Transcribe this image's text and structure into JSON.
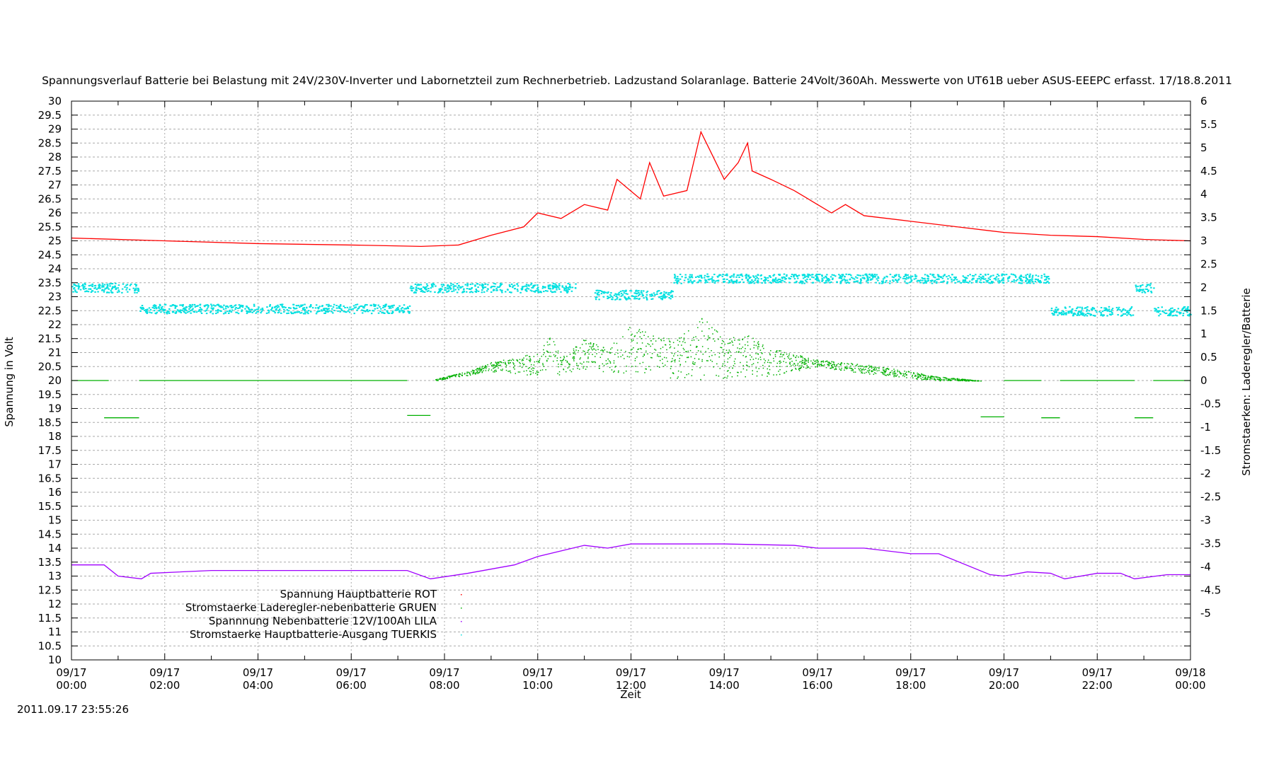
{
  "chart_data": {
    "type": "scatter",
    "title": "Spannungsverlauf Batterie bei Belastung mit 24V/230V-Inverter und Labornetzteil zum Rechnerbetrieb. Ladzustand Solaranlage. Batterie 24Volt/360Ah. Messwerte von UT61B ueber ASUS-EEEPC erfasst. 17/18.8.2011",
    "xlabel": "Zeit",
    "ylabel": "Spannung in Volt",
    "y2label": "Stromstaerken: Laderegler/Batterie",
    "timestamp": "2011.09.17 23:55:26",
    "xlim_hours": [
      0,
      24
    ],
    "ylim": [
      10,
      30
    ],
    "y2lim": [
      -6,
      6
    ],
    "grid": true,
    "legend_position": "bottom-left",
    "x_ticks": [
      {
        "h": 0,
        "date": "09/17",
        "time": "00:00"
      },
      {
        "h": 2,
        "date": "09/17",
        "time": "02:00"
      },
      {
        "h": 4,
        "date": "09/17",
        "time": "04:00"
      },
      {
        "h": 6,
        "date": "09/17",
        "time": "06:00"
      },
      {
        "h": 8,
        "date": "09/17",
        "time": "08:00"
      },
      {
        "h": 10,
        "date": "09/17",
        "time": "10:00"
      },
      {
        "h": 12,
        "date": "09/17",
        "time": "12:00"
      },
      {
        "h": 14,
        "date": "09/17",
        "time": "14:00"
      },
      {
        "h": 16,
        "date": "09/17",
        "time": "16:00"
      },
      {
        "h": 18,
        "date": "09/17",
        "time": "18:00"
      },
      {
        "h": 20,
        "date": "09/17",
        "time": "20:00"
      },
      {
        "h": 22,
        "date": "09/17",
        "time": "22:00"
      },
      {
        "h": 24,
        "date": "09/18",
        "time": "00:00"
      }
    ],
    "y_ticks": [
      "10",
      "10.5",
      "11",
      "11.5",
      "12",
      "12.5",
      "13",
      "13.5",
      "14",
      "14.5",
      "15",
      "15.5",
      "16",
      "16.5",
      "17",
      "17.5",
      "18",
      "18.5",
      "19",
      "19.5",
      "20",
      "20.5",
      "21",
      "21.5",
      "22",
      "22.5",
      "23",
      "23.5",
      "24",
      "24.5",
      "25",
      "25.5",
      "26",
      "26.5",
      "27",
      "27.5",
      "28",
      "28.5",
      "29",
      "29.5",
      "30"
    ],
    "y2_ticks": [
      "-5",
      "-4.5",
      "-4",
      "-3.5",
      "-3",
      "-2.5",
      "-2",
      "-1.5",
      "-1",
      "-0.5",
      "0",
      "0.5",
      "1",
      "1.5",
      "2",
      "2.5",
      "3",
      "3.5",
      "4",
      "4.5",
      "5",
      "5.5",
      "6"
    ],
    "series": [
      {
        "name": "Spannung Hauptbatterie ROT",
        "color": "#ff0000",
        "axis": "y",
        "points": [
          [
            0,
            25.1
          ],
          [
            2,
            25.0
          ],
          [
            4,
            24.9
          ],
          [
            6,
            24.85
          ],
          [
            7.5,
            24.8
          ],
          [
            8.3,
            24.85
          ],
          [
            9,
            25.2
          ],
          [
            9.7,
            25.5
          ],
          [
            10,
            26.0
          ],
          [
            10.5,
            25.8
          ],
          [
            11,
            26.3
          ],
          [
            11.5,
            26.1
          ],
          [
            11.7,
            27.2
          ],
          [
            12.2,
            26.5
          ],
          [
            12.4,
            27.8
          ],
          [
            12.7,
            26.6
          ],
          [
            13.2,
            26.8
          ],
          [
            13.5,
            28.9
          ],
          [
            14,
            27.2
          ],
          [
            14.3,
            27.8
          ],
          [
            14.5,
            28.5
          ],
          [
            14.6,
            27.5
          ],
          [
            15,
            27.2
          ],
          [
            15.5,
            26.8
          ],
          [
            16,
            26.3
          ],
          [
            16.3,
            26.0
          ],
          [
            16.6,
            26.3
          ],
          [
            17,
            25.9
          ],
          [
            18,
            25.7
          ],
          [
            19,
            25.5
          ],
          [
            20,
            25.3
          ],
          [
            21,
            25.2
          ],
          [
            22,
            25.15
          ],
          [
            23,
            25.05
          ],
          [
            24,
            25.0
          ]
        ]
      },
      {
        "name": "Stromstaerke Laderegler-nebenbatterie GRUEN",
        "color": "#00b000",
        "axis": "y2",
        "line_segments": [
          [
            0,
            0.8,
            0
          ],
          [
            1.45,
            7.2,
            0
          ],
          [
            20,
            20.8,
            0
          ],
          [
            21.2,
            22.8,
            0
          ],
          [
            23.2,
            24,
            0
          ],
          [
            0.7,
            1.45,
            -0.8
          ],
          [
            7.2,
            7.7,
            -0.75
          ],
          [
            19.5,
            20.0,
            -0.78
          ],
          [
            20.8,
            21.2,
            -0.8
          ],
          [
            22.8,
            23.2,
            -0.8
          ]
        ],
        "scatter_upper": [
          [
            7.8,
            0.05
          ],
          [
            8.5,
            0.2
          ],
          [
            9,
            0.4
          ],
          [
            10,
            0.6
          ],
          [
            10.3,
            1.0
          ],
          [
            10.5,
            0.5
          ],
          [
            11,
            0.9
          ],
          [
            11.5,
            0.7
          ],
          [
            12,
            1.2
          ],
          [
            12.5,
            1.0
          ],
          [
            13,
            0.9
          ],
          [
            13.5,
            1.4
          ],
          [
            14,
            0.9
          ],
          [
            14.5,
            1.0
          ],
          [
            15,
            0.7
          ],
          [
            16,
            0.45
          ],
          [
            17,
            0.35
          ],
          [
            18,
            0.2
          ],
          [
            18.5,
            0.1
          ],
          [
            19.5,
            0
          ]
        ],
        "scatter_lower": [
          [
            7.8,
            0
          ],
          [
            9,
            0.2
          ],
          [
            10,
            0.1
          ],
          [
            11.5,
            0.2
          ],
          [
            13,
            0
          ],
          [
            15,
            0.1
          ],
          [
            16,
            0.3
          ],
          [
            17,
            0.15
          ],
          [
            18.5,
            0
          ],
          [
            19.5,
            0
          ]
        ]
      },
      {
        "name": "Spannnung Nebenbatterie 12V/100Ah LILA",
        "color": "#a000ff",
        "axis": "y",
        "points": [
          [
            0,
            13.4
          ],
          [
            0.7,
            13.4
          ],
          [
            1,
            13.0
          ],
          [
            1.5,
            12.9
          ],
          [
            1.7,
            13.1
          ],
          [
            3,
            13.2
          ],
          [
            7.2,
            13.2
          ],
          [
            7.7,
            12.9
          ],
          [
            8.5,
            13.1
          ],
          [
            9.5,
            13.4
          ],
          [
            10,
            13.7
          ],
          [
            11,
            14.1
          ],
          [
            11.5,
            14.0
          ],
          [
            12,
            14.15
          ],
          [
            14,
            14.15
          ],
          [
            15.5,
            14.1
          ],
          [
            16,
            14.0
          ],
          [
            17,
            14.0
          ],
          [
            18,
            13.8
          ],
          [
            18.6,
            13.8
          ],
          [
            19.7,
            13.05
          ],
          [
            20,
            13.0
          ],
          [
            20.5,
            13.15
          ],
          [
            21,
            13.1
          ],
          [
            21.3,
            12.9
          ],
          [
            22,
            13.1
          ],
          [
            22.5,
            13.1
          ],
          [
            22.8,
            12.9
          ],
          [
            23.5,
            13.05
          ],
          [
            24,
            13.05
          ]
        ]
      },
      {
        "name": "Stromstaerke Hauptbatterie-Ausgang TUERKIS",
        "color": "#00e0e0",
        "axis": "y2",
        "segments": [
          [
            0,
            1.45,
            2.0
          ],
          [
            1.45,
            7.25,
            1.55
          ],
          [
            7.25,
            10.8,
            2.0
          ],
          [
            11.2,
            12.9,
            1.85
          ],
          [
            12.9,
            15,
            2.2
          ],
          [
            15,
            21.0,
            2.2
          ],
          [
            21,
            22.8,
            1.5
          ],
          [
            22.8,
            23.2,
            2.0
          ],
          [
            23.2,
            24,
            1.5
          ]
        ]
      }
    ]
  }
}
